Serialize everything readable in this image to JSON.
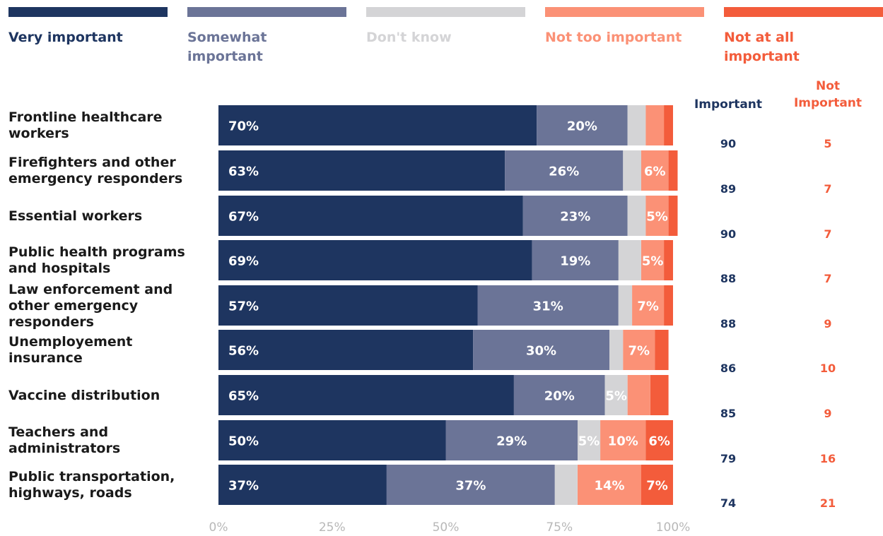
{
  "chart_data": {
    "type": "bar",
    "orientation": "horizontal",
    "stacked": true,
    "legend_position": "top",
    "xlim": [
      0,
      100
    ],
    "x_ticks": [
      "0%",
      "25%",
      "50%",
      "75%",
      "100%"
    ],
    "categories": [
      "Frontline healthcare workers",
      "Firefighters and other emergency responders",
      "Essential workers",
      "Public health programs and hospitals",
      "Law enforcement and other emergency responders",
      "Unemployement insurance",
      "Vaccine distribution",
      "Teachers and administrators",
      "Public transportation, highways, roads"
    ],
    "series": [
      {
        "name": "Very important",
        "color": "#1e3560",
        "values": [
          70,
          63,
          67,
          69,
          57,
          56,
          65,
          50,
          37
        ],
        "labels": [
          "70%",
          "63%",
          "67%",
          "69%",
          "57%",
          "56%",
          "65%",
          "50%",
          "37%"
        ]
      },
      {
        "name": "Somewhat important",
        "color": "#6b7497",
        "values": [
          20,
          26,
          23,
          19,
          31,
          30,
          20,
          29,
          37
        ],
        "labels": [
          "20%",
          "26%",
          "23%",
          "19%",
          "31%",
          "30%",
          "20%",
          "29%",
          "37%"
        ]
      },
      {
        "name": "Don't know",
        "color": "#d4d4d6",
        "values": [
          4,
          4,
          4,
          5,
          3,
          3,
          5,
          5,
          5
        ],
        "labels": [
          "",
          "",
          "",
          "",
          "",
          "",
          "5%",
          "5%",
          ""
        ]
      },
      {
        "name": "Not too important",
        "color": "#fb9176",
        "values": [
          4,
          6,
          5,
          5,
          7,
          7,
          5,
          10,
          14
        ],
        "labels": [
          "",
          "6%",
          "5%",
          "5%",
          "7%",
          "7%",
          "",
          "10%",
          "14%"
        ]
      },
      {
        "name": "Not at all important",
        "color": "#f35c3b",
        "values": [
          2,
          2,
          2,
          2,
          2,
          3,
          4,
          6,
          7
        ],
        "labels": [
          "",
          "",
          "",
          "",
          "",
          "",
          "",
          "6%",
          "7%"
        ]
      }
    ],
    "important_header": "Important",
    "not_important_header": "Not\nImportant",
    "important": [
      "90",
      "89",
      "90",
      "88",
      "88",
      "86",
      "85",
      "79",
      "74"
    ],
    "not_important": [
      "5",
      "7",
      "7",
      "7",
      "9",
      "10",
      "9",
      "16",
      "21"
    ]
  },
  "legend": [
    {
      "label": "Very important",
      "color": "#1e3560"
    },
    {
      "label": "Somewhat\nimportant",
      "color": "#6b7497"
    },
    {
      "label": "Don't know",
      "color": "#d4d4d6"
    },
    {
      "label": "Not too important",
      "color": "#fb9176"
    },
    {
      "label": "Not at all\nimportant",
      "color": "#f35c3b"
    }
  ],
  "category_labels": [
    "Frontline healthcare\nworkers",
    "Firefighters and other\nemergency responders",
    "Essential workers",
    "Public health programs\nand hospitals",
    "Law enforcement and\nother emergency\nresponders",
    "Unemployement\ninsurance",
    "Vaccine distribution",
    "Teachers and\nadministrators",
    "Public transportation,\nhighways, roads"
  ],
  "colors": {
    "important": "#1e3560",
    "not_important": "#f35c3b",
    "tick": "#b8b8b8",
    "bar_text": "#ffffff"
  }
}
